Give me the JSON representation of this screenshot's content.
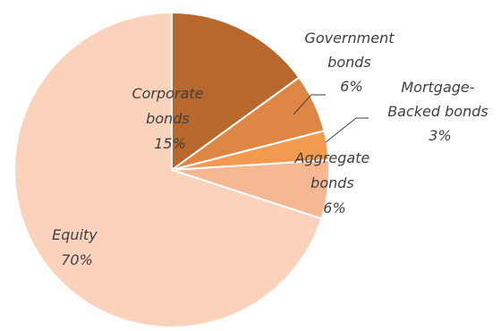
{
  "chart_data": {
    "type": "pie",
    "title": "",
    "slices": [
      {
        "key": "corporate",
        "label_lines": [
          "Corporate",
          "bonds"
        ],
        "value_label": "15%",
        "value": 15,
        "color": "#b8672d"
      },
      {
        "key": "government",
        "label_lines": [
          "Government",
          "bonds"
        ],
        "value_label": "6%",
        "value": 6,
        "color": "#de8643"
      },
      {
        "key": "mortgage",
        "label_lines": [
          "Mortgage-",
          "Backed bonds"
        ],
        "value_label": "3%",
        "value": 3,
        "color": "#f29a4f"
      },
      {
        "key": "aggregate",
        "label_lines": [
          "Aggregate",
          "bonds"
        ],
        "value_label": "6%",
        "value": 6,
        "color": "#f6b793"
      },
      {
        "key": "equity",
        "label_lines": [
          "Equity"
        ],
        "value_label": "70%",
        "value": 70,
        "color": "#fbd3bd"
      }
    ]
  }
}
